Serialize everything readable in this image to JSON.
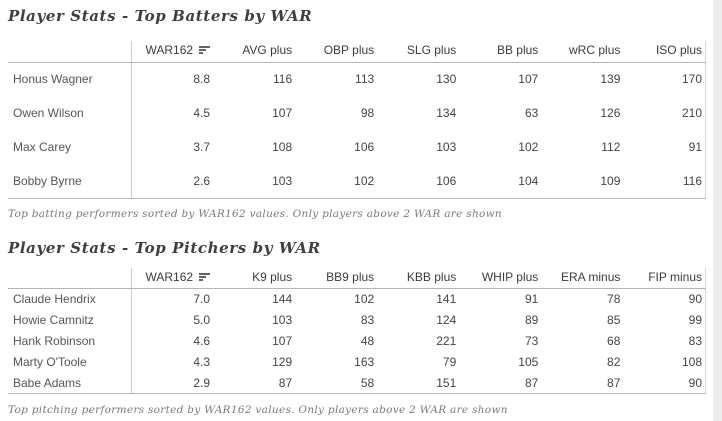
{
  "theme": {
    "background": "#ffffff",
    "right_strip_color": "#ededed",
    "border_color": "#b5b5b5",
    "text_color": "#3c3c3c",
    "footnote_color": "#7a7a7a"
  },
  "batters": {
    "title": "Player Stats - Top Batters by WAR",
    "sort": {
      "column": "WAR162",
      "direction": "descending",
      "icon": "sort-descending-icon"
    },
    "columns": [
      "WAR162",
      "AVG plus",
      "OBP plus",
      "SLG plus",
      "BB plus",
      "wRC plus",
      "ISO plus"
    ],
    "rows": [
      {
        "name": "Honus Wagner",
        "values": [
          "8.8",
          "116",
          "113",
          "130",
          "107",
          "139",
          "170"
        ]
      },
      {
        "name": "Owen Wilson",
        "values": [
          "4.5",
          "107",
          "98",
          "134",
          "63",
          "126",
          "210"
        ]
      },
      {
        "name": "Max Carey",
        "values": [
          "3.7",
          "108",
          "106",
          "103",
          "102",
          "112",
          "91"
        ]
      },
      {
        "name": "Bobby Byrne",
        "values": [
          "2.6",
          "103",
          "102",
          "106",
          "104",
          "109",
          "116"
        ]
      }
    ],
    "footnote": "Top batting performers sorted by WAR162 values. Only players above 2 WAR are shown"
  },
  "pitchers": {
    "title": "Player Stats - Top Pitchers by WAR",
    "sort": {
      "column": "WAR162",
      "direction": "descending",
      "icon": "sort-descending-icon"
    },
    "columns": [
      "WAR162",
      "K9 plus",
      "BB9 plus",
      "KBB plus",
      "WHIP plus",
      "ERA minus",
      "FIP minus"
    ],
    "rows": [
      {
        "name": "Claude Hendrix",
        "values": [
          "7.0",
          "144",
          "102",
          "141",
          "91",
          "78",
          "90"
        ]
      },
      {
        "name": "Howie Camnitz",
        "values": [
          "5.0",
          "103",
          "83",
          "124",
          "89",
          "85",
          "99"
        ]
      },
      {
        "name": "Hank Robinson",
        "values": [
          "4.6",
          "107",
          "48",
          "221",
          "73",
          "68",
          "83"
        ]
      },
      {
        "name": "Marty O'Toole",
        "values": [
          "4.3",
          "129",
          "163",
          "79",
          "105",
          "82",
          "108"
        ]
      },
      {
        "name": "Babe Adams",
        "values": [
          "2.9",
          "87",
          "58",
          "151",
          "87",
          "87",
          "90"
        ]
      }
    ],
    "footnote": "Top pitching performers sorted by WAR162 values. Only players above 2 WAR are shown"
  }
}
